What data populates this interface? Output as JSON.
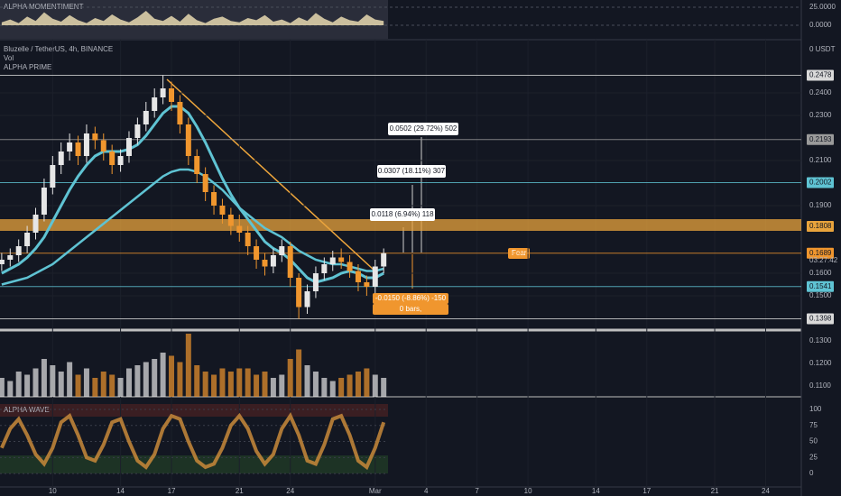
{
  "chart_data": {
    "type": "candlestick",
    "title": "Bluzelle / TetherUS, 4h, BINANCE",
    "indicators": [
      "Vol",
      "ALPHA PRIME"
    ],
    "currency_label": "0 USDT",
    "countdown": "03:27:42",
    "annotation": "Fear-",
    "up_color": "#e6e6e6",
    "down_color": "#f0962e",
    "ma_color": "#5fc3d3",
    "x": [
      7,
      7.5,
      8,
      8.5,
      9,
      9.5,
      10,
      10.5,
      11,
      11.5,
      12,
      12.5,
      13,
      13.5,
      14,
      14.5,
      15,
      15.5,
      16,
      16.5,
      17,
      17.5,
      18,
      18.5,
      19,
      19.5,
      20,
      20.5,
      21,
      21.5,
      22,
      22.5,
      23,
      23.5,
      24,
      24.5,
      25,
      25.5,
      26,
      26.5,
      27,
      27.5,
      28,
      28.5,
      29,
      29.5
    ],
    "open": [
      0.164,
      0.166,
      0.168,
      0.172,
      0.178,
      0.186,
      0.198,
      0.208,
      0.214,
      0.218,
      0.212,
      0.222,
      0.219,
      0.214,
      0.208,
      0.212,
      0.22,
      0.226,
      0.232,
      0.238,
      0.242,
      0.236,
      0.226,
      0.212,
      0.204,
      0.196,
      0.19,
      0.186,
      0.181,
      0.178,
      0.172,
      0.166,
      0.163,
      0.168,
      0.172,
      0.158,
      0.145,
      0.152,
      0.16,
      0.164,
      0.167,
      0.165,
      0.161,
      0.156,
      0.154,
      0.163
    ],
    "high": [
      0.169,
      0.171,
      0.175,
      0.181,
      0.189,
      0.202,
      0.212,
      0.218,
      0.222,
      0.221,
      0.226,
      0.225,
      0.222,
      0.217,
      0.215,
      0.223,
      0.229,
      0.236,
      0.242,
      0.2478,
      0.245,
      0.239,
      0.229,
      0.215,
      0.207,
      0.199,
      0.193,
      0.189,
      0.186,
      0.181,
      0.175,
      0.169,
      0.171,
      0.175,
      0.174,
      0.16,
      0.155,
      0.163,
      0.167,
      0.17,
      0.171,
      0.168,
      0.164,
      0.159,
      0.166,
      0.171
    ],
    "low": [
      0.161,
      0.163,
      0.165,
      0.169,
      0.175,
      0.183,
      0.195,
      0.204,
      0.21,
      0.208,
      0.209,
      0.215,
      0.21,
      0.204,
      0.205,
      0.209,
      0.217,
      0.223,
      0.229,
      0.235,
      0.232,
      0.222,
      0.208,
      0.2,
      0.192,
      0.186,
      0.182,
      0.177,
      0.174,
      0.168,
      0.162,
      0.159,
      0.16,
      0.165,
      0.154,
      0.1398,
      0.142,
      0.149,
      0.157,
      0.161,
      0.162,
      0.158,
      0.152,
      0.15,
      0.151,
      0.16
    ],
    "close": [
      0.166,
      0.168,
      0.172,
      0.178,
      0.186,
      0.198,
      0.208,
      0.214,
      0.218,
      0.212,
      0.222,
      0.219,
      0.214,
      0.208,
      0.212,
      0.22,
      0.226,
      0.232,
      0.238,
      0.242,
      0.236,
      0.226,
      0.212,
      0.204,
      0.196,
      0.19,
      0.186,
      0.181,
      0.178,
      0.172,
      0.166,
      0.163,
      0.168,
      0.172,
      0.158,
      0.145,
      0.152,
      0.16,
      0.164,
      0.167,
      0.165,
      0.161,
      0.156,
      0.154,
      0.163,
      0.1689
    ],
    "ma_fast": [
      0.16,
      0.162,
      0.164,
      0.167,
      0.171,
      0.176,
      0.183,
      0.19,
      0.197,
      0.203,
      0.208,
      0.212,
      0.214,
      0.214,
      0.214,
      0.215,
      0.217,
      0.221,
      0.226,
      0.231,
      0.234,
      0.234,
      0.231,
      0.225,
      0.218,
      0.21,
      0.202,
      0.195,
      0.189,
      0.184,
      0.179,
      0.174,
      0.171,
      0.169,
      0.166,
      0.162,
      0.158,
      0.156,
      0.157,
      0.158,
      0.16,
      0.161,
      0.16,
      0.158,
      0.158,
      0.16
    ],
    "ma_slow": [
      0.155,
      0.156,
      0.157,
      0.158,
      0.16,
      0.162,
      0.164,
      0.167,
      0.17,
      0.173,
      0.176,
      0.179,
      0.182,
      0.185,
      0.188,
      0.191,
      0.194,
      0.197,
      0.2,
      0.203,
      0.205,
      0.206,
      0.206,
      0.205,
      0.203,
      0.2,
      0.197,
      0.193,
      0.189,
      0.186,
      0.183,
      0.18,
      0.178,
      0.176,
      0.173,
      0.17,
      0.168,
      0.166,
      0.165,
      0.164,
      0.164,
      0.163,
      0.162,
      0.161,
      0.161,
      0.162
    ],
    "xlim": [
      6.9,
      54.1
    ],
    "xticks": [
      10,
      14,
      17,
      21,
      24,
      {
        "value": 29,
        "label": "Mar"
      },
      {
        "value": 32,
        "label": "4"
      },
      {
        "value": 35,
        "label": "7"
      },
      {
        "value": 38,
        "label": "10"
      },
      {
        "value": 42,
        "label": "14"
      },
      {
        "value": 45,
        "label": "17"
      },
      {
        "value": 49,
        "label": "21"
      },
      {
        "value": 52,
        "label": "24"
      }
    ],
    "ylim": [
      0.1052,
      0.2632
    ],
    "yticks": [
      {
        "value": 0.24,
        "label": "0.2400"
      },
      {
        "value": 0.23,
        "label": "0.2300"
      },
      {
        "value": 0.21,
        "label": "0.2100"
      },
      {
        "value": 0.19,
        "label": "0.1900"
      },
      {
        "value": 0.16,
        "label": "0.1600"
      },
      {
        "value": 0.15,
        "label": "0.1500"
      },
      {
        "value": 0.13,
        "label": "0.1300"
      },
      {
        "value": 0.12,
        "label": "0.1200"
      },
      {
        "value": 0.11,
        "label": "0.1100"
      }
    ],
    "levels": [
      {
        "value": 0.2478,
        "color": "#d9d9d9"
      },
      {
        "value": 0.2193,
        "color": "#9a9a9a"
      },
      {
        "value": 0.2002,
        "color": "#5fc3d3"
      },
      {
        "value": 0.1808,
        "color": "#e8a33c"
      },
      {
        "value": 0.1689,
        "color": "#f0962e"
      },
      {
        "value": 0.1541,
        "color": "#5fc3d3"
      },
      {
        "value": 0.1398,
        "color": "#d9d9d9"
      }
    ],
    "measures": [
      "0.0502 (29.72%) 502",
      "0.0307 (18.11%) 307",
      "0.0118 (6.94%) 118",
      "-0.0150 (-8.86%) -150",
      "0 bars,"
    ],
    "volume": {
      "values": [
        30,
        25,
        40,
        35,
        45,
        60,
        50,
        40,
        55,
        35,
        45,
        30,
        40,
        35,
        30,
        45,
        50,
        55,
        60,
        70,
        65,
        55,
        100,
        50,
        40,
        35,
        45,
        40,
        45,
        45,
        35,
        40,
        30,
        35,
        60,
        75,
        50,
        40,
        30,
        25,
        30,
        35,
        40,
        45,
        35,
        30
      ],
      "ylim": [
        0,
        100
      ]
    },
    "sentiment": {
      "name": "ALPHA MOMENTIMENT",
      "values": [
        4,
        8,
        3,
        12,
        6,
        18,
        9,
        5,
        14,
        7,
        3,
        10,
        6,
        15,
        8,
        4,
        11,
        20,
        9,
        6,
        13,
        5,
        16,
        7,
        3,
        9,
        12,
        6,
        4,
        10,
        7,
        14,
        5,
        8,
        3,
        11,
        6,
        17,
        9,
        4,
        12,
        7,
        5,
        15,
        8,
        6
      ],
      "ylim": [
        -17.5,
        28.75
      ],
      "yticks": [
        {
          "value": 25,
          "label": "25.0000"
        },
        {
          "value": 0,
          "label": "0.0000"
        }
      ]
    },
    "wave": {
      "name": "ALPHA WAVE",
      "values": [
        40,
        70,
        85,
        60,
        30,
        15,
        40,
        80,
        90,
        60,
        25,
        20,
        45,
        80,
        85,
        50,
        20,
        10,
        30,
        70,
        90,
        85,
        50,
        20,
        10,
        15,
        40,
        75,
        90,
        70,
        35,
        15,
        30,
        70,
        90,
        60,
        20,
        15,
        45,
        85,
        90,
        60,
        20,
        10,
        40,
        80
      ],
      "ylim": [
        -21,
        108.5
      ],
      "yticks": [
        100,
        75,
        50,
        25,
        0
      ]
    }
  }
}
